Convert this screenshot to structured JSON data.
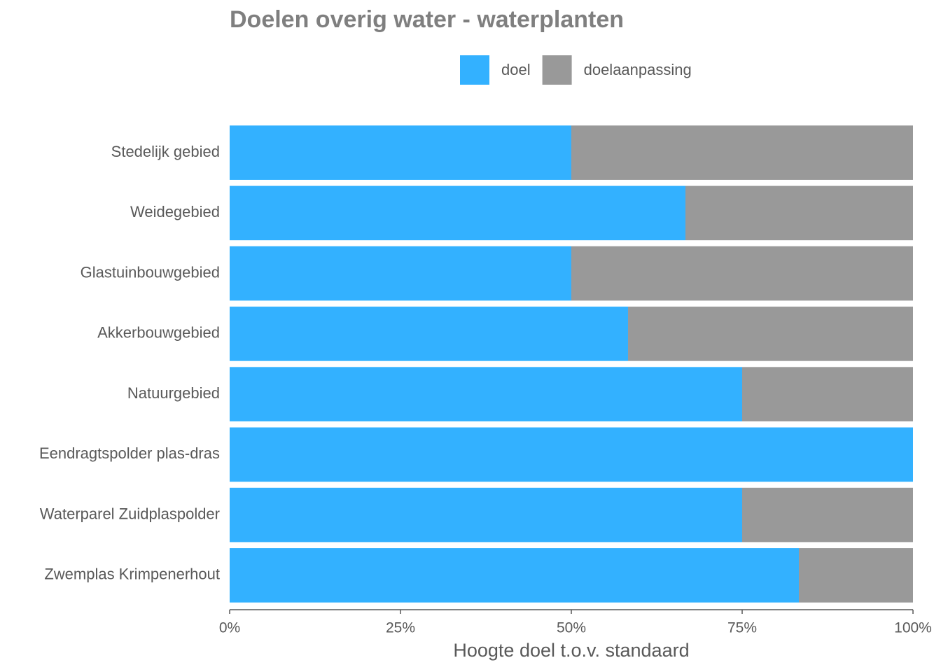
{
  "chart_data": {
    "type": "stacked-bar-horizontal",
    "title": "Doelen overig water - waterplanten",
    "x_label": "Hoogte doel t.o.v. standaard",
    "categories": [
      "Stedelijk gebied",
      "Weidegebied",
      "Glastuinbouwgebied",
      "Akkerbouwgebied",
      "Natuurgebied",
      "Eendragtspolder plas-dras",
      "Waterparel Zuidplaspolder",
      "Zwemplas Krimpenerhout"
    ],
    "series": [
      {
        "name": "doel",
        "color": "#33b1ff",
        "values": [
          50,
          66.7,
          50,
          58.3,
          75,
          100,
          75,
          83.3
        ]
      },
      {
        "name": "doelaanpassing",
        "color": "#999999",
        "values": [
          50,
          33.3,
          50,
          41.7,
          25,
          0,
          25,
          16.7
        ]
      }
    ],
    "xlim": [
      0,
      100
    ],
    "xticks": [
      {
        "value": 0,
        "label": "0%"
      },
      {
        "value": 25,
        "label": "25%"
      },
      {
        "value": 50,
        "label": "50%"
      },
      {
        "value": 75,
        "label": "75%"
      },
      {
        "value": 100,
        "label": "100%"
      }
    ],
    "legend": "top",
    "grid": false
  }
}
